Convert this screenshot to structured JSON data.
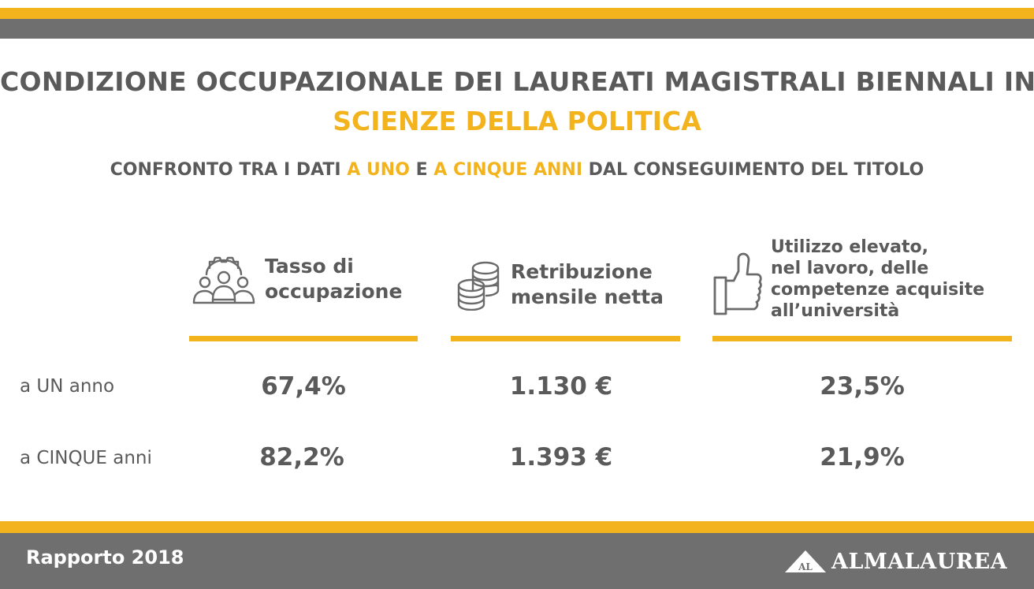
{
  "header": {
    "title_line1": "CONDIZIONE OCCUPAZIONALE DEI LAUREATI MAGISTRALI BIENNALI IN",
    "title_line2": "SCIENZE DELLA POLITICA",
    "subtitle": {
      "part1": "CONFRONTO TRA I DATI ",
      "hl1": "A UNO",
      "part2": " E ",
      "hl2": "A CINQUE ANNI",
      "part3": " DAL CONSEGUIMENTO DEL TITOLO"
    }
  },
  "columns": [
    {
      "icon": "people-gear-icon",
      "label_lines": [
        "Tasso di",
        "occupazione"
      ]
    },
    {
      "icon": "coins-stack-icon",
      "label_lines": [
        "Retribuzione",
        "mensile netta"
      ]
    },
    {
      "icon": "thumbs-up-icon",
      "label_lines": [
        "Utilizzo elevato,",
        "nel lavoro, delle",
        "competenze acquisite",
        "all’università"
      ]
    }
  ],
  "rows": [
    {
      "label": "a UN anno",
      "values": [
        "67,4%",
        "1.130 €",
        "23,5%"
      ]
    },
    {
      "label": "a CINQUE anni",
      "values": [
        "82,2%",
        "1.393 €",
        "21,9%"
      ]
    }
  ],
  "footer": {
    "report": "Rapporto 2018",
    "logo_badge": "AL",
    "logo_text": "ALMALAUREA"
  },
  "colors": {
    "accent": "#f3b31c",
    "band_gray": "#6f6f6f",
    "text": "#5a5a5a"
  }
}
